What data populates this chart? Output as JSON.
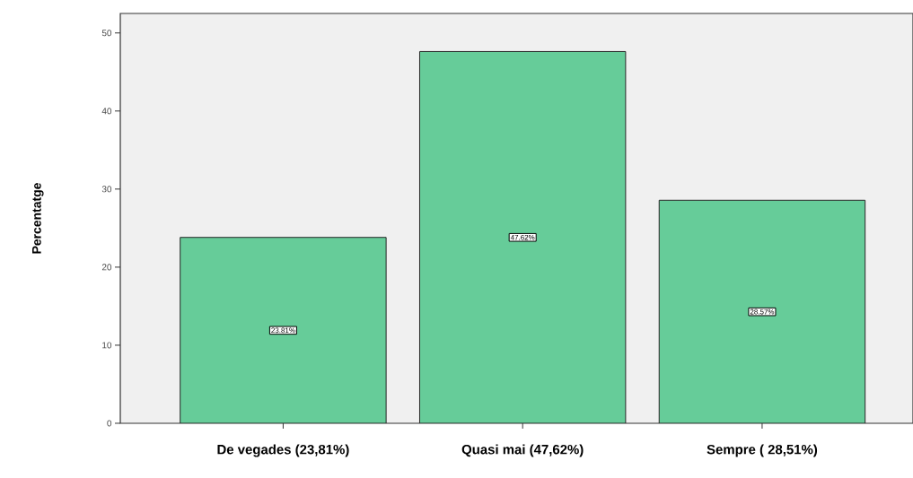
{
  "chart_data": {
    "type": "bar",
    "ylabel": "Percentatge",
    "categories": [
      "De vegades (23,81%)",
      "Quasi mai (47,62%)",
      "Sempre ( 28,51%)"
    ],
    "values": [
      23.81,
      47.62,
      28.57
    ],
    "value_labels": [
      "23.81%",
      "47.62%",
      "28.57%"
    ],
    "color": "#66cc99",
    "ylim": [
      0,
      52.5
    ],
    "yticks": [
      0,
      10,
      20,
      30,
      40,
      50
    ],
    "grid": false
  }
}
